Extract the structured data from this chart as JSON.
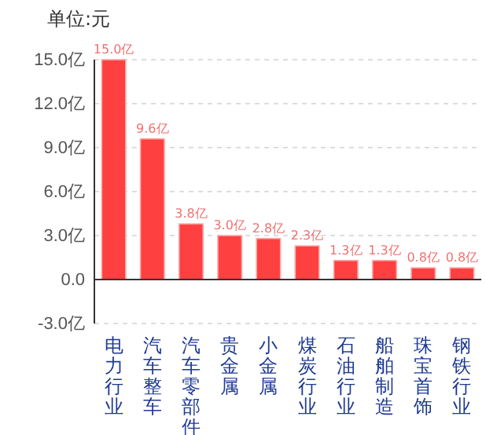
{
  "chart_data": {
    "type": "bar",
    "title": "单位:元",
    "categories": [
      "电力行业",
      "汽车整车",
      "汽车零部件",
      "贵金属",
      "小金属",
      "煤炭行业",
      "石油行业",
      "船舶制造",
      "珠宝首饰",
      "钢铁行业"
    ],
    "values": [
      15.0,
      9.6,
      3.8,
      3.0,
      2.8,
      2.3,
      1.3,
      1.3,
      0.8,
      0.8
    ],
    "value_labels": [
      "15.0亿",
      "9.6亿",
      "3.8亿",
      "3.0亿",
      "2.8亿",
      "2.3亿",
      "1.3亿",
      "1.3亿",
      "0.8亿",
      "0.8亿"
    ],
    "color": "#ff4040",
    "ylim": [
      -3,
      15
    ],
    "yticks": [
      {
        "value": -3,
        "label": "-3.0亿"
      },
      {
        "value": 0,
        "label": "0.0"
      },
      {
        "value": 3,
        "label": "3.0亿"
      },
      {
        "value": 6,
        "label": "6.0亿"
      },
      {
        "value": 9,
        "label": "9.0亿"
      },
      {
        "value": 12,
        "label": "12.0亿"
      },
      {
        "value": 15,
        "label": "15.0亿"
      }
    ],
    "grid": "y"
  }
}
